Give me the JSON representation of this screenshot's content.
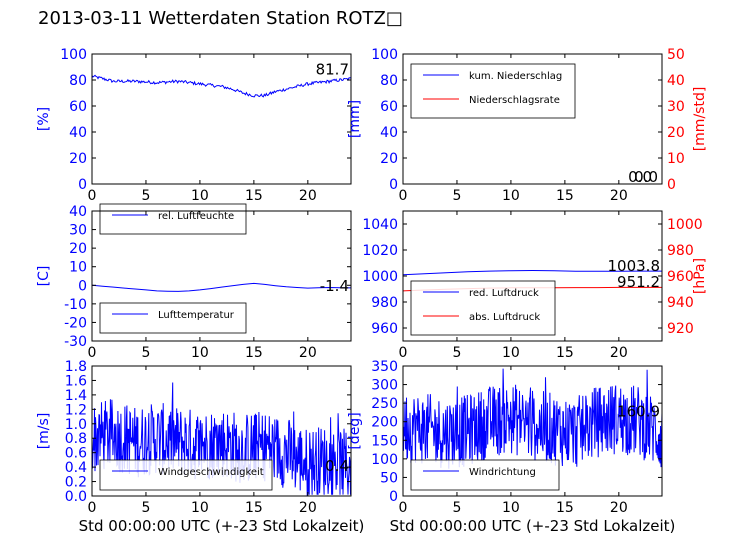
{
  "page": {
    "title": "2013-03-11 Wetterdaten Station ROTZ□"
  },
  "colors": {
    "primary": "#0000ff",
    "secondary": "#ff0000",
    "axis": "#000000"
  },
  "chart_data": [
    {
      "id": "humidity",
      "type": "line",
      "ylabel": "[%]",
      "ylim": [
        0,
        100
      ],
      "yticks": [
        0,
        20,
        40,
        60,
        80,
        100
      ],
      "xlim": [
        0,
        24
      ],
      "xticks": [
        0,
        5,
        10,
        15,
        20
      ],
      "xlabel": "",
      "legend": {
        "entries": [
          {
            "label": "rel. Luftfeuchte",
            "color": "#0000ff"
          }
        ],
        "placement": "lower-left"
      },
      "annotations": [
        {
          "text": "81.7"
        }
      ],
      "series": [
        {
          "name": "rel. Luftfeuchte",
          "color": "#0000ff",
          "pattern": "noisy",
          "x": [
            0,
            1,
            2,
            4,
            6,
            8,
            10,
            12,
            13,
            14,
            15,
            16,
            17,
            18,
            19,
            20,
            21,
            22,
            23,
            24
          ],
          "y": [
            83,
            81,
            79,
            79,
            78,
            79,
            77,
            75,
            73,
            70,
            68,
            68,
            71,
            73,
            75,
            77,
            78,
            79,
            80,
            81
          ]
        }
      ]
    },
    {
      "id": "precip",
      "type": "line",
      "ylabel": "[mm]",
      "ylim": [
        0,
        100
      ],
      "yticks": [
        0,
        20,
        40,
        60,
        80,
        100
      ],
      "y2label": "[mm/std]",
      "y2lim": [
        0,
        50
      ],
      "y2ticks": [
        0,
        10,
        20,
        30,
        40,
        50
      ],
      "xlim": [
        0,
        24
      ],
      "xticks": [
        0,
        5,
        10,
        15,
        20
      ],
      "xlabel": "",
      "legend": {
        "entries": [
          {
            "label": "kum. Niederschlag",
            "color": "#0000ff"
          },
          {
            "label": "Niederschlagsrate",
            "color": "#ff0000"
          }
        ],
        "placement": "upper-left"
      },
      "annotations": [
        {
          "text": "0.0"
        },
        {
          "text": "0.0"
        }
      ],
      "series": [
        {
          "name": "kum. Niederschlag",
          "color": "#0000ff",
          "axis": "y",
          "x": [
            0,
            24
          ],
          "y": [
            0,
            0
          ]
        },
        {
          "name": "Niederschlagsrate",
          "color": "#ff0000",
          "axis": "y2",
          "x": [
            0,
            24
          ],
          "y": [
            0,
            0
          ]
        }
      ]
    },
    {
      "id": "temperature",
      "type": "line",
      "ylabel": "[C]",
      "ylim": [
        -30,
        40
      ],
      "yticks": [
        -30,
        -20,
        -10,
        0,
        10,
        20,
        30,
        40
      ],
      "xlim": [
        0,
        24
      ],
      "xticks": [
        0,
        5,
        10,
        15,
        20
      ],
      "xlabel": "",
      "legend": {
        "entries": [
          {
            "label": "Lufttemperatur",
            "color": "#0000ff"
          }
        ],
        "placement": "lower-left"
      },
      "annotations": [
        {
          "text": "-1.4"
        }
      ],
      "series": [
        {
          "name": "Lufttemperatur",
          "color": "#0000ff",
          "x": [
            0,
            1,
            2,
            3,
            4,
            5,
            6,
            7,
            8,
            9,
            10,
            11,
            12,
            13,
            14,
            15,
            16,
            17,
            18,
            19,
            20,
            21,
            22,
            23,
            24
          ],
          "y": [
            0,
            -0.5,
            -1,
            -1.5,
            -2,
            -2.5,
            -3,
            -3.2,
            -3.3,
            -3,
            -2.5,
            -1.8,
            -1,
            -0.3,
            0.5,
            1,
            0.5,
            -0.2,
            -0.8,
            -1.2,
            -1.5,
            -1.3,
            -1.2,
            -1.3,
            -1.4
          ]
        }
      ]
    },
    {
      "id": "pressure",
      "type": "line",
      "ylabel": "",
      "ylim": [
        950,
        1050
      ],
      "yticks": [
        960,
        980,
        1000,
        1020,
        1040
      ],
      "y2label": "[hPa]",
      "y2lim": [
        910,
        1010
      ],
      "y2ticks": [
        920,
        940,
        960,
        980,
        1000
      ],
      "xlim": [
        0,
        24
      ],
      "xticks": [
        0,
        5,
        10,
        15,
        20
      ],
      "xlabel": "",
      "legend": {
        "entries": [
          {
            "label": "red. Luftdruck",
            "color": "#0000ff"
          },
          {
            "label": "abs. Luftdruck",
            "color": "#ff0000"
          }
        ],
        "placement": "lower-left"
      },
      "annotations": [
        {
          "text": "1003.8"
        },
        {
          "text": "951.2"
        }
      ],
      "series": [
        {
          "name": "red. Luftdruck",
          "color": "#0000ff",
          "axis": "y",
          "x": [
            0,
            2,
            4,
            6,
            8,
            10,
            12,
            14,
            16,
            18,
            20,
            22,
            24
          ],
          "y": [
            1001,
            1001.8,
            1002.5,
            1003.2,
            1003.8,
            1004.1,
            1004.2,
            1004.1,
            1003.7,
            1003.6,
            1003.7,
            1003.8,
            1003.8
          ]
        },
        {
          "name": "abs. Luftdruck",
          "color": "#ff0000",
          "axis": "y2",
          "x": [
            0,
            2,
            4,
            6,
            8,
            10,
            12,
            14,
            16,
            18,
            20,
            22,
            24
          ],
          "y": [
            948.5,
            949.2,
            949.8,
            950.3,
            950.7,
            950.9,
            951.0,
            951.0,
            951.1,
            951.1,
            951.2,
            951.2,
            951.2
          ]
        }
      ]
    },
    {
      "id": "windspeed",
      "type": "line",
      "ylabel": "[m/s]",
      "ylim": [
        0,
        1.8
      ],
      "yticks": [
        0.0,
        0.2,
        0.4,
        0.6,
        0.8,
        1.0,
        1.2,
        1.4,
        1.6,
        1.8
      ],
      "xlim": [
        0,
        24
      ],
      "xticks": [
        0,
        5,
        10,
        15,
        20
      ],
      "xlabel": "Std 00:00:00 UTC (+-23 Std Lokalzeit)",
      "legend": {
        "entries": [
          {
            "label": "Windgeschwindigkeit",
            "color": "#0000ff"
          }
        ],
        "placement": "lower-left"
      },
      "annotations": [
        {
          "text": "0.4"
        }
      ],
      "series": [
        {
          "name": "Windgeschwindigkeit",
          "color": "#0000ff",
          "pattern": "spiky",
          "x": [
            0,
            2,
            4,
            6,
            8,
            10,
            12,
            14,
            16,
            18,
            20,
            22,
            24
          ],
          "y": [
            0.8,
            0.85,
            0.75,
            0.8,
            0.75,
            0.7,
            0.75,
            0.65,
            0.7,
            0.6,
            0.45,
            0.5,
            0.4
          ]
        }
      ]
    },
    {
      "id": "winddir",
      "type": "line",
      "ylabel": "[deg]",
      "ylim": [
        0,
        350
      ],
      "yticks": [
        0,
        50,
        100,
        150,
        200,
        250,
        300,
        350
      ],
      "xlim": [
        0,
        24
      ],
      "xticks": [
        0,
        5,
        10,
        15,
        20
      ],
      "xlabel": "Std 00:00:00 UTC (+-23 Std Lokalzeit)",
      "legend": {
        "entries": [
          {
            "label": "Windrichtung",
            "color": "#0000ff"
          }
        ],
        "placement": "lower-left"
      },
      "annotations": [
        {
          "text": "160.9"
        }
      ],
      "series": [
        {
          "name": "Windrichtung",
          "color": "#0000ff",
          "pattern": "spiky",
          "x": [
            0,
            2,
            4,
            6,
            8,
            10,
            12,
            14,
            16,
            18,
            20,
            22,
            24
          ],
          "y": [
            190,
            180,
            170,
            175,
            200,
            210,
            190,
            180,
            170,
            200,
            210,
            200,
            160
          ]
        }
      ]
    }
  ]
}
